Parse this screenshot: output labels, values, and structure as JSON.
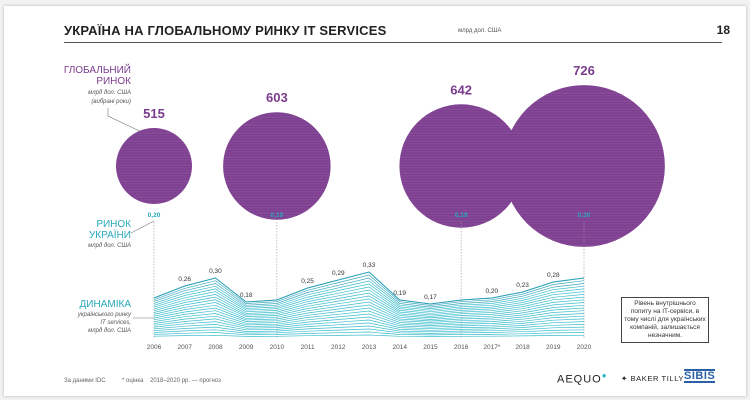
{
  "header": {
    "title": "УКРАЇНА НА ГЛОБАЛЬНОМУ РИНКУ IT SERVICES",
    "unit": "млрд дол. США",
    "page_number": "18"
  },
  "labels": {
    "global_title_1": "ГЛОБАЛЬНИЙ",
    "global_title_2": "РИНОК",
    "global_sub_1": "млрд дол. США",
    "global_sub_2": "(вибрані роки)",
    "ukraine_title_1": "РИНОК",
    "ukraine_title_2": "УКРАЇНИ",
    "ukraine_sub": "млрд дол. США",
    "dyn_title": "ДИНАМІКА",
    "dyn_sub_1": "українського ринку",
    "dyn_sub_2": "IT services,",
    "dyn_sub_3": "млрд дол. США"
  },
  "chart_data": [
    {
      "type": "bubble",
      "name": "global-market",
      "x": [
        "2006",
        "2010",
        "2016",
        "2020"
      ],
      "values": [
        515,
        603,
        642,
        726
      ],
      "ukraine_values": [
        "0,20",
        "0,19",
        "0,19",
        "0,30"
      ]
    },
    {
      "type": "area",
      "name": "ukraine-dynamics",
      "x": [
        "2006",
        "2007",
        "2008",
        "2009",
        "2010",
        "2011",
        "2012",
        "2013",
        "2014",
        "2015",
        "2016",
        "2017*",
        "2018",
        "2019",
        "2020"
      ],
      "values": [
        0.2,
        0.26,
        0.3,
        0.18,
        0.19,
        0.25,
        0.29,
        0.33,
        0.19,
        0.17,
        0.19,
        0.2,
        0.23,
        0.28,
        0.3
      ],
      "labels": [
        "",
        "0,26",
        "0,30",
        "0,18",
        "",
        "0,25",
        "0,29",
        "0,33",
        "0,19",
        "0,17",
        "",
        "0,20",
        "0,23",
        "0,28",
        ""
      ],
      "ylim": [
        0,
        0.35
      ]
    }
  ],
  "note": "Рівень внутрішнього попиту на IT-сервіси, в тому числі для українських компаній, залишається незначним.",
  "footer": {
    "source": "За даними IDC",
    "estimate": "* оцінка",
    "forecast": "2018–2020 рр. — прогноз"
  },
  "logos": {
    "aequo": "AEQUO",
    "baker": "BAKER TILLY",
    "sibis": "SIBIS"
  },
  "colors": {
    "purple": "#7b3c8e",
    "teal": "#28b6c8",
    "label_purple": "#7b3c8e",
    "label_teal": "#28a8bd"
  }
}
